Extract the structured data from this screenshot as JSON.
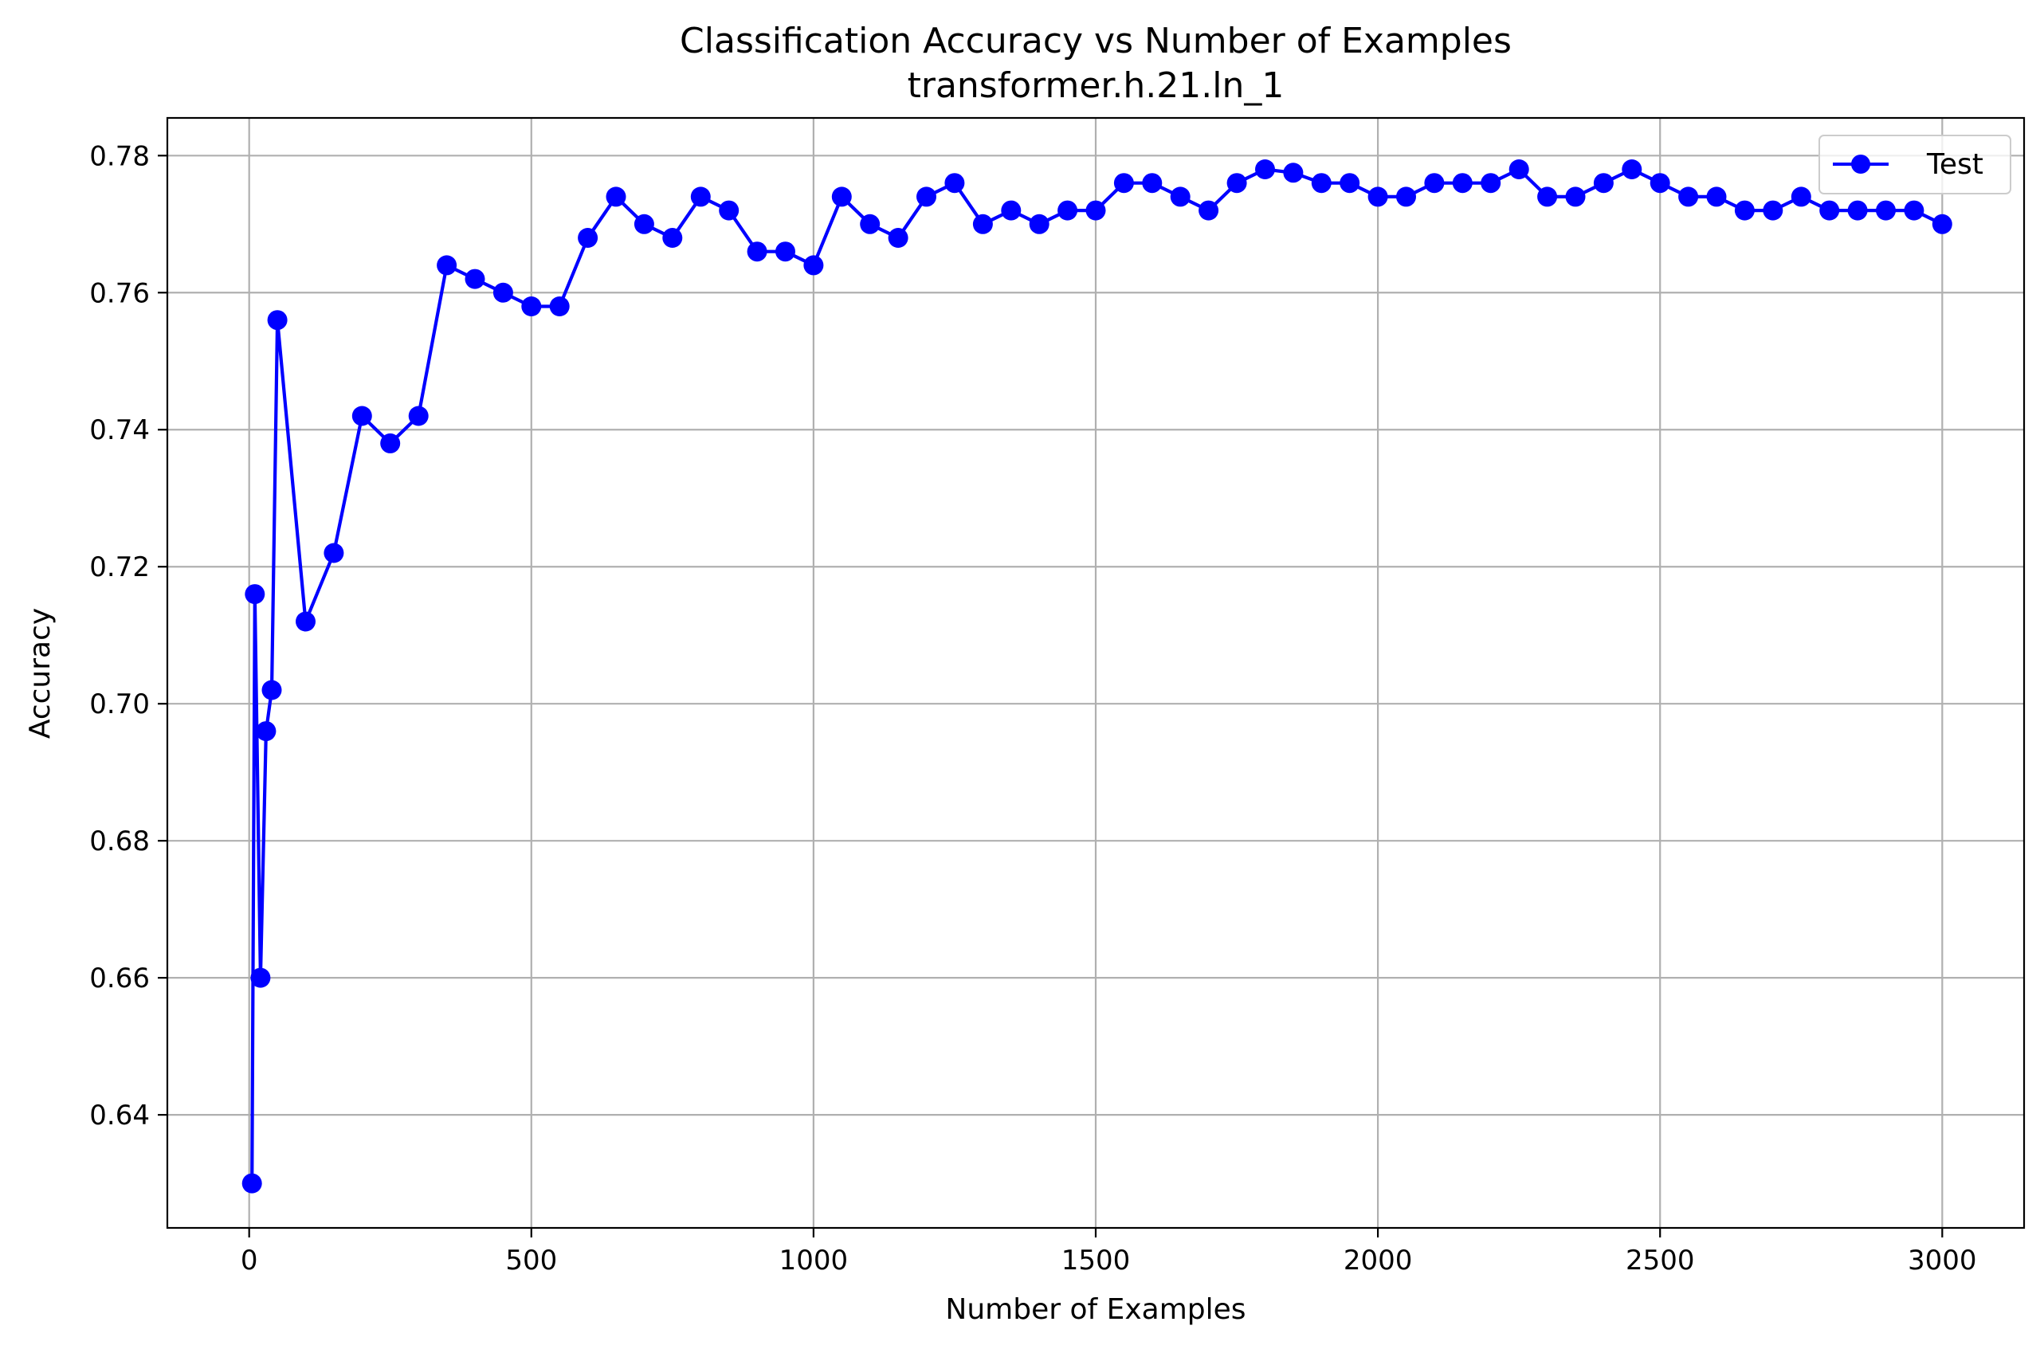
{
  "chart_data": {
    "type": "line",
    "title": "Classification Accuracy vs Number of Examples",
    "subtitle": "transformer.h.21.ln_1",
    "xlabel": "Number of Examples",
    "ylabel": "Accuracy",
    "xlim": [
      -145,
      3145
    ],
    "ylim": [
      0.6235,
      0.7855
    ],
    "xticks": [
      0,
      500,
      1000,
      1500,
      2000,
      2500,
      3000
    ],
    "xtick_labels": [
      "0",
      "500",
      "1000",
      "1500",
      "2000",
      "2500",
      "3000"
    ],
    "yticks": [
      0.64,
      0.66,
      0.68,
      0.7,
      0.72,
      0.74,
      0.76,
      0.78
    ],
    "ytick_labels": [
      "0.64",
      "0.66",
      "0.68",
      "0.70",
      "0.72",
      "0.74",
      "0.76",
      "0.78"
    ],
    "grid": true,
    "legend_position": "top-right",
    "series": [
      {
        "name": "Test",
        "color": "#0000ff",
        "marker": "circle",
        "x": [
          5,
          10,
          20,
          30,
          40,
          50,
          100,
          150,
          200,
          250,
          300,
          350,
          400,
          450,
          500,
          550,
          600,
          650,
          700,
          750,
          800,
          850,
          900,
          950,
          1000,
          1050,
          1100,
          1150,
          1200,
          1250,
          1300,
          1350,
          1400,
          1450,
          1500,
          1550,
          1600,
          1650,
          1700,
          1750,
          1800,
          1850,
          1900,
          1950,
          2000,
          2050,
          2100,
          2150,
          2200,
          2250,
          2300,
          2350,
          2400,
          2450,
          2500,
          2550,
          2600,
          2650,
          2700,
          2750,
          2800,
          2850,
          2900,
          2950,
          3000
        ],
        "y": [
          0.63,
          0.716,
          0.66,
          0.696,
          0.702,
          0.756,
          0.712,
          0.722,
          0.742,
          0.738,
          0.742,
          0.764,
          0.762,
          0.76,
          0.758,
          0.758,
          0.768,
          0.774,
          0.77,
          0.768,
          0.774,
          0.772,
          0.766,
          0.766,
          0.764,
          0.774,
          0.77,
          0.768,
          0.774,
          0.776,
          0.77,
          0.772,
          0.77,
          0.772,
          0.772,
          0.776,
          0.776,
          0.774,
          0.772,
          0.776,
          0.778,
          0.7775,
          0.776,
          0.776,
          0.774,
          0.774,
          0.776,
          0.776,
          0.776,
          0.778,
          0.774,
          0.774,
          0.776,
          0.778,
          0.776,
          0.774,
          0.774,
          0.772,
          0.772,
          0.774,
          0.772,
          0.772,
          0.772,
          0.772,
          0.77
        ]
      }
    ]
  }
}
